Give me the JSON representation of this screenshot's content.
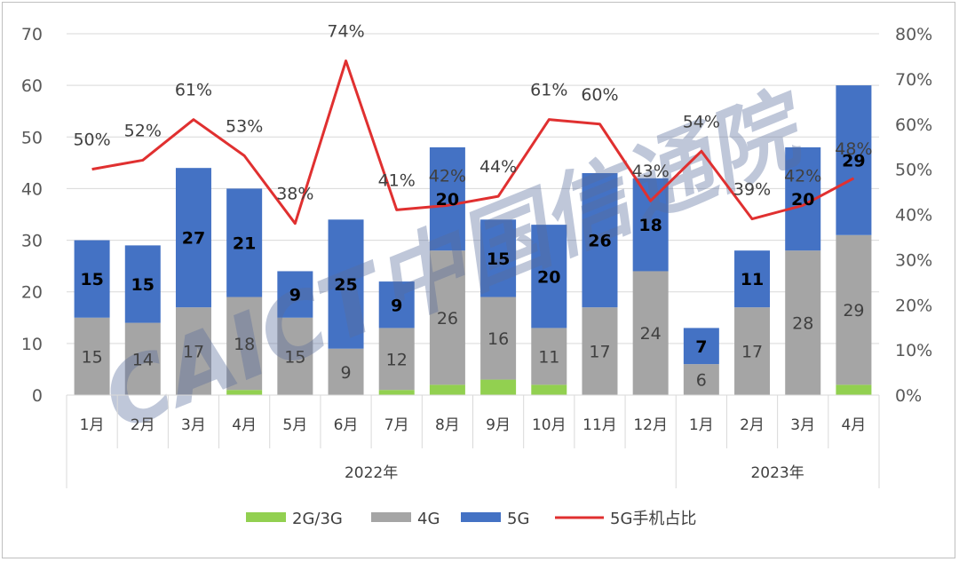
{
  "chart_data": {
    "type": "bar",
    "subtype": "stacked bar with line on secondary axis",
    "categories": [
      "1月",
      "2月",
      "3月",
      "4月",
      "5月",
      "6月",
      "7月",
      "8月",
      "9月",
      "10月",
      "11月",
      "12月",
      "1月",
      "2月",
      "3月",
      "4月"
    ],
    "groups": [
      {
        "label": "2022年",
        "count": 12
      },
      {
        "label": "2023年",
        "count": 4
      }
    ],
    "series": [
      {
        "name": "2G/3G",
        "type": "bar",
        "color": "#92d050",
        "values": [
          0,
          0,
          0,
          1,
          0,
          0,
          1,
          2,
          3,
          2,
          0,
          0,
          0,
          0,
          0,
          2
        ]
      },
      {
        "name": "4G",
        "type": "bar",
        "color": "#a5a5a5",
        "values": [
          15,
          14,
          17,
          18,
          15,
          9,
          12,
          26,
          16,
          11,
          17,
          24,
          6,
          17,
          28,
          29
        ]
      },
      {
        "name": "5G",
        "type": "bar",
        "color": "#4472c4",
        "values": [
          15,
          15,
          27,
          21,
          9,
          25,
          9,
          20,
          15,
          20,
          26,
          18,
          7,
          11,
          20,
          29
        ]
      },
      {
        "name": "5G手机占比",
        "type": "line",
        "axis": "right",
        "color": "#e03030",
        "values": [
          50,
          52,
          61,
          53,
          38,
          74,
          41,
          42,
          44,
          61,
          60,
          43,
          54,
          39,
          42,
          48
        ]
      }
    ],
    "labels_4g": [
      "15",
      "14",
      "17",
      "18",
      "15",
      "9",
      "12",
      "26",
      "16",
      "11",
      "17",
      "24",
      "6",
      "17",
      "28",
      "29"
    ],
    "labels_5g": [
      "15",
      "15",
      "27",
      "21",
      "9",
      "25",
      "9",
      "20",
      "15",
      "20",
      "26",
      "18",
      "7",
      "11",
      "20",
      "29"
    ],
    "labels_pct": [
      "50%",
      "52%",
      "61%",
      "53%",
      "38%",
      "74%",
      "41%",
      "42%",
      "44%",
      "61%",
      "60%",
      "43%",
      "54%",
      "39%",
      "42%",
      "48%"
    ],
    "y_left": {
      "min": 0,
      "max": 70,
      "step": 10,
      "ticks": [
        "0",
        "10",
        "20",
        "30",
        "40",
        "50",
        "60",
        "70"
      ]
    },
    "y_right": {
      "min": 0,
      "max": 80,
      "step": 10,
      "ticks": [
        "0%",
        "10%",
        "20%",
        "30%",
        "40%",
        "50%",
        "60%",
        "70%",
        "80%"
      ]
    },
    "grid": true,
    "legend_position": "bottom",
    "legend": [
      "2G/3G",
      "4G",
      "5G",
      "5G手机占比"
    ]
  },
  "watermark": {
    "text": "CAICT中国信通院",
    "color": "#5a6e9c"
  }
}
